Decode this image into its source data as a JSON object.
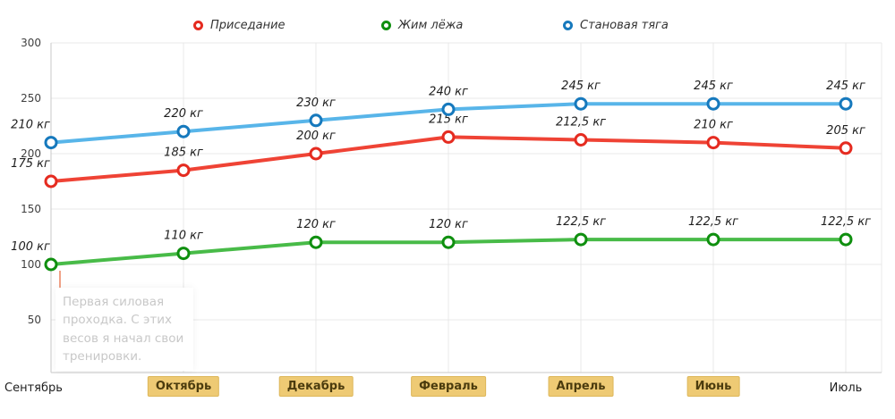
{
  "chart_data": {
    "type": "line",
    "title": "",
    "xlabel": "",
    "ylabel": "",
    "ylim": [
      0,
      300
    ],
    "grid": true,
    "legend_position": "top",
    "categories": [
      "Сентябрь",
      "Октябрь",
      "Декабрь",
      "Февраль",
      "Апрель",
      "Июнь",
      "Июль"
    ],
    "highlighted_categories": [
      false,
      true,
      true,
      true,
      true,
      true,
      false
    ],
    "y_ticks": [
      50,
      100,
      150,
      200,
      250,
      300
    ],
    "series": [
      {
        "id": "squat",
        "name": "Приседание",
        "color": "#ef4335",
        "marker_color": "#e52b20",
        "values": [
          175,
          185,
          200,
          215,
          212.5,
          210,
          205
        ],
        "labels": [
          "175 кг",
          "185 кг",
          "200 кг",
          "215 кг",
          "212,5 кг",
          "210 кг",
          "205 кг"
        ]
      },
      {
        "id": "bench-press",
        "name": "Жим лёжа",
        "color": "#48bb48",
        "marker_color": "#0f8f0f",
        "values": [
          100,
          110,
          120,
          120,
          122.5,
          122.5,
          122.5
        ],
        "labels": [
          "100 кг",
          "110 кг",
          "120 кг",
          "120 кг",
          "122,5 кг",
          "122,5 кг",
          "122,5 кг"
        ]
      },
      {
        "id": "deadlift",
        "name": "Становая тяга",
        "color": "#58b5e9",
        "marker_color": "#1679bd",
        "values": [
          210,
          220,
          230,
          240,
          245,
          245,
          245
        ],
        "labels": [
          "210 кг",
          "220 кг",
          "230 кг",
          "240 кг",
          "245 кг",
          "245 кг",
          "245 кг"
        ]
      }
    ],
    "colors": {
      "grid": "#e8e8e8",
      "axis": "#c8c8c8"
    },
    "badge": {
      "bg": "#eeca74",
      "border": "#ddb75a",
      "text": "#4c3c0e"
    },
    "annotation": {
      "text": "Первая силовая проходка. С этих весов я начал свои тренировки.",
      "color": "#c8c8c8",
      "accent_color": "#f0a287"
    }
  }
}
